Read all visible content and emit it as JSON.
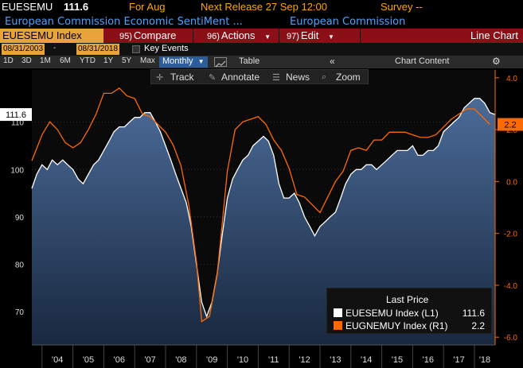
{
  "header": {
    "ticker": "EUESEMU",
    "last_value": "111.6",
    "for_label": "For Aug",
    "next_release": "Next Release 27 Sep 12:00",
    "survey": "Survey --",
    "description": "European Commission Economic SentiMent ...",
    "source": "European Commission"
  },
  "toolbar": {
    "ticker_field": "EUESEMU Index",
    "compare_num": "95)",
    "compare_label": "Compare",
    "actions_num": "96)",
    "actions_label": "Actions",
    "edit_num": "97)",
    "edit_label": "Edit",
    "chart_type": "Line Chart"
  },
  "dates": {
    "start": "08/31/2003",
    "end": "08/31/2018",
    "key_events": "Key Events"
  },
  "ranges": [
    "1D",
    "3D",
    "1M",
    "6M",
    "YTD",
    "1Y",
    "5Y",
    "Max"
  ],
  "frequency": "Monthly",
  "table_label": "Table",
  "chart_content_label": "Chart Content",
  "tools": {
    "track": "Track",
    "annotate": "Annotate",
    "news": "News",
    "zoom": "Zoom"
  },
  "legend": {
    "title": "Last Price",
    "series": [
      {
        "label": "EUESEMU Index  (L1)",
        "value": "111.6",
        "color": "#ffffff"
      },
      {
        "label": "EUGNEMUY Index  (R1)",
        "value": "2.2",
        "color": "#ff6a00"
      }
    ]
  },
  "chart_data": {
    "type": "line",
    "x_ticks": [
      "'04",
      "'05",
      "'06",
      "'07",
      "'08",
      "'09",
      "'10",
      "'11",
      "'12",
      "'13",
      "'14",
      "'15",
      "'16",
      "'17",
      "'18"
    ],
    "left_axis": {
      "ticks": [
        "110",
        "100",
        "90",
        "80",
        "70"
      ],
      "range": [
        63,
        121
      ]
    },
    "right_axis": {
      "ticks": [
        "4.0",
        "2.0",
        "0.0",
        "-2.0",
        "-4.0",
        "-6.0"
      ],
      "range": [
        -6.3,
        4.3
      ]
    },
    "last_labels": {
      "left": "111.6",
      "right": "2.2"
    },
    "series": [
      {
        "name": "EUESEMU Index",
        "axis": "left",
        "color": "#ffffff",
        "x": [
          2003.67,
          2003.83,
          2004.0,
          2004.17,
          2004.33,
          2004.5,
          2004.67,
          2004.83,
          2005.0,
          2005.17,
          2005.33,
          2005.5,
          2005.67,
          2005.83,
          2006.0,
          2006.17,
          2006.33,
          2006.5,
          2006.67,
          2006.83,
          2007.0,
          2007.17,
          2007.33,
          2007.5,
          2007.67,
          2007.83,
          2008.0,
          2008.17,
          2008.33,
          2008.5,
          2008.67,
          2008.83,
          2009.0,
          2009.17,
          2009.33,
          2009.5,
          2009.67,
          2009.83,
          2010.0,
          2010.17,
          2010.33,
          2010.5,
          2010.67,
          2010.83,
          2011.0,
          2011.17,
          2011.33,
          2011.5,
          2011.67,
          2011.83,
          2012.0,
          2012.17,
          2012.33,
          2012.5,
          2012.67,
          2012.83,
          2013.0,
          2013.17,
          2013.33,
          2013.5,
          2013.67,
          2013.83,
          2014.0,
          2014.17,
          2014.33,
          2014.5,
          2014.67,
          2014.83,
          2015.0,
          2015.17,
          2015.33,
          2015.5,
          2015.67,
          2015.83,
          2016.0,
          2016.17,
          2016.33,
          2016.5,
          2016.67,
          2016.83,
          2017.0,
          2017.17,
          2017.33,
          2017.5,
          2017.67,
          2017.83,
          2018.0,
          2018.17,
          2018.33,
          2018.5,
          2018.67
        ],
        "values": [
          96,
          99,
          101,
          100,
          102,
          101,
          102,
          101,
          100,
          98,
          97,
          99,
          101,
          102,
          104,
          106,
          108,
          109,
          109,
          110,
          111,
          111,
          112,
          112,
          110,
          108,
          105,
          102,
          99,
          96,
          93,
          88,
          80,
          72,
          69,
          72,
          78,
          86,
          94,
          98,
          100,
          102,
          103,
          105,
          106,
          107,
          106,
          103,
          97,
          94,
          94,
          95,
          93,
          90,
          88,
          86,
          88,
          89,
          90,
          91,
          94,
          97,
          99,
          100,
          100,
          101,
          101,
          100,
          101,
          102,
          103,
          104,
          104,
          104,
          105,
          103,
          103,
          104,
          104,
          105,
          108,
          109,
          110,
          111,
          113,
          114,
          115,
          115,
          114,
          112,
          111.6
        ]
      },
      {
        "name": "EUGNEMUY Index",
        "axis": "right",
        "color": "#ff6a00",
        "x": [
          2003.67,
          2004.0,
          2004.25,
          2004.5,
          2004.75,
          2005.0,
          2005.25,
          2005.5,
          2005.75,
          2006.0,
          2006.25,
          2006.5,
          2006.75,
          2007.0,
          2007.25,
          2007.5,
          2007.75,
          2008.0,
          2008.25,
          2008.5,
          2008.75,
          2009.0,
          2009.17,
          2009.42,
          2009.67,
          2010.0,
          2010.25,
          2010.5,
          2010.75,
          2011.0,
          2011.25,
          2011.5,
          2011.75,
          2012.0,
          2012.25,
          2012.5,
          2012.75,
          2013.0,
          2013.25,
          2013.5,
          2013.75,
          2014.0,
          2014.25,
          2014.5,
          2014.75,
          2015.0,
          2015.25,
          2015.5,
          2015.75,
          2016.0,
          2016.25,
          2016.5,
          2016.75,
          2017.0,
          2017.25,
          2017.5,
          2017.75,
          2018.0,
          2018.25,
          2018.5
        ],
        "values": [
          0.8,
          1.8,
          2.3,
          2.0,
          1.5,
          1.3,
          1.5,
          2.0,
          2.6,
          3.4,
          3.4,
          3.6,
          3.3,
          3.2,
          2.6,
          2.5,
          2.2,
          1.9,
          1.4,
          0.6,
          -0.9,
          -3.1,
          -5.4,
          -5.2,
          -3.6,
          0.4,
          2.0,
          2.3,
          2.4,
          2.5,
          2.2,
          1.6,
          1.2,
          0.5,
          -0.5,
          -0.6,
          -0.9,
          -1.2,
          -0.6,
          0.0,
          0.4,
          1.2,
          1.3,
          1.2,
          1.6,
          1.6,
          1.9,
          1.9,
          1.9,
          1.8,
          1.7,
          1.7,
          1.8,
          2.1,
          2.4,
          2.6,
          2.8,
          2.8,
          2.5,
          2.2
        ]
      }
    ]
  }
}
